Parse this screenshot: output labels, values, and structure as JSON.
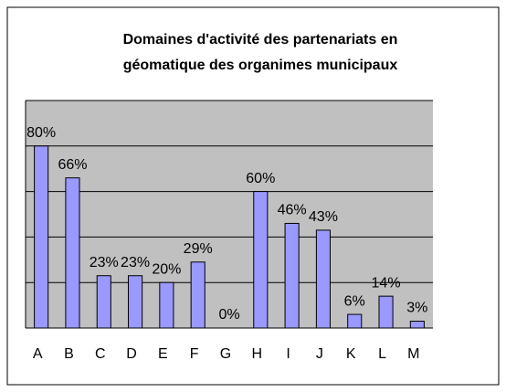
{
  "chart_data": {
    "type": "bar",
    "title": [
      "Domaines d'activité des partenariats en",
      "géomatique des organimes municipaux"
    ],
    "categories": [
      "A",
      "B",
      "C",
      "D",
      "E",
      "F",
      "G",
      "H",
      "I",
      "J",
      "K",
      "L",
      "M"
    ],
    "values": [
      80,
      66,
      23,
      23,
      20,
      29,
      0,
      60,
      46,
      43,
      6,
      14,
      3
    ],
    "value_labels": [
      "80%",
      "66%",
      "23%",
      "23%",
      "20%",
      "29%",
      "0%",
      "60%",
      "46%",
      "43%",
      "6%",
      "14%",
      "3%"
    ],
    "color": "#9999ff",
    "ylim": [
      0,
      100
    ],
    "yticks": [
      0,
      20,
      40,
      60,
      80,
      100
    ],
    "grid": true
  }
}
